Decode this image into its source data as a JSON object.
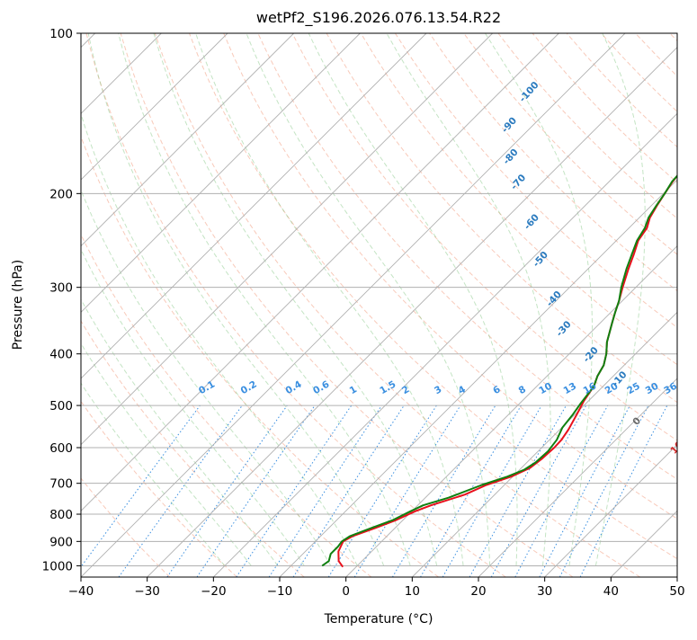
{
  "chart_data": {
    "type": "line",
    "title": "wetPf2_S196.2026.076.13.54.R22",
    "xlabel": "Temperature (°C)",
    "ylabel": "Pressure (hPa)",
    "xlim": [
      -40,
      50
    ],
    "ylim": [
      1050,
      100
    ],
    "x_ticks": [
      -40,
      -30,
      -20,
      -10,
      0,
      10,
      20,
      30,
      40,
      50
    ],
    "x_tick_labels": [
      "−40",
      "−30",
      "−20",
      "−10",
      "0",
      "10",
      "20",
      "30",
      "40",
      "50"
    ],
    "y_ticks": [
      1000,
      900,
      800,
      700,
      600,
      500,
      400,
      300,
      200,
      100
    ],
    "y_tick_labels": [
      "1000",
      "900",
      "800",
      "700",
      "600",
      "500",
      "400",
      "300",
      "200",
      "100"
    ],
    "y_scale": "log",
    "grid": true,
    "series": [
      {
        "name": "temperature",
        "color": "#e8101c",
        "points": [
          [
            -2,
            1005
          ],
          [
            -3.5,
            980
          ],
          [
            -5,
            940
          ],
          [
            -5.8,
            900
          ],
          [
            -5.2,
            880
          ],
          [
            -3,
            850
          ],
          [
            -1,
            820
          ],
          [
            0.5,
            790
          ],
          [
            2,
            770
          ],
          [
            5.5,
            735
          ],
          [
            7.3,
            705
          ],
          [
            9.8,
            680
          ],
          [
            11.3,
            655
          ],
          [
            11.7,
            630
          ],
          [
            11.9,
            600
          ],
          [
            11.8,
            580
          ],
          [
            11.3,
            555
          ],
          [
            10.3,
            520
          ],
          [
            9.3,
            490
          ],
          [
            8.6,
            460
          ],
          [
            7.6,
            440
          ],
          [
            6.9,
            420
          ],
          [
            5.6,
            400
          ],
          [
            3.9,
            380
          ],
          [
            1.8,
            350
          ],
          [
            0.7,
            335
          ],
          [
            -0.5,
            318
          ],
          [
            -2,
            300
          ],
          [
            -3.9,
            277
          ],
          [
            -5.3,
            260
          ],
          [
            -6.7,
            245
          ],
          [
            -7.3,
            232
          ],
          [
            -8.4,
            222
          ],
          [
            -9.2,
            210
          ],
          [
            -9.8,
            200
          ],
          [
            -10.4,
            190
          ],
          [
            -10.6,
            185
          ],
          [
            -9.7,
            176
          ],
          [
            -8.6,
            172
          ],
          [
            -4,
            166
          ],
          [
            3,
            158
          ],
          [
            8,
            151
          ],
          [
            9.8,
            146
          ],
          [
            10.5,
            140
          ],
          [
            12,
            130
          ],
          [
            14.5,
            120
          ],
          [
            18.3,
            110
          ],
          [
            22.5,
            100
          ]
        ]
      },
      {
        "name": "dewpoint",
        "color": "#108010",
        "points": [
          [
            -5.3,
            1000
          ],
          [
            -5,
            980
          ],
          [
            -5.8,
            950
          ],
          [
            -5.8,
            920
          ],
          [
            -6,
            900
          ],
          [
            -5.6,
            880
          ],
          [
            -3.6,
            850
          ],
          [
            -1.5,
            820
          ],
          [
            -0.2,
            790
          ],
          [
            0.8,
            770
          ],
          [
            3.5,
            745
          ],
          [
            6.6,
            705
          ],
          [
            9.2,
            680
          ],
          [
            10.7,
            660
          ],
          [
            11.3,
            640
          ],
          [
            11.5,
            610
          ],
          [
            11.1,
            580
          ],
          [
            10.1,
            550
          ],
          [
            9.7,
            520
          ],
          [
            9.2,
            495
          ],
          [
            8.6,
            460
          ],
          [
            7.6,
            440
          ],
          [
            6.9,
            420
          ],
          [
            5.6,
            400
          ],
          [
            3.9,
            380
          ],
          [
            1.8,
            350
          ],
          [
            0.7,
            335
          ],
          [
            -0.5,
            318
          ],
          [
            -2.2,
            300
          ],
          [
            -4.2,
            277
          ],
          [
            -5.6,
            260
          ],
          [
            -6.9,
            245
          ],
          [
            -7.6,
            232
          ],
          [
            -8.6,
            222
          ],
          [
            -9.3,
            210
          ],
          [
            -9.8,
            200
          ],
          [
            -10.5,
            190
          ],
          [
            -10.6,
            185
          ],
          [
            -9.7,
            176
          ],
          [
            -8.4,
            172
          ],
          [
            -4.1,
            166
          ],
          [
            -4.7,
            158
          ],
          [
            -5.8,
            151
          ],
          [
            -7.1,
            145
          ],
          [
            -9.8,
            140
          ],
          [
            -10.7,
            136
          ],
          [
            -9.3,
            130
          ],
          [
            -7.1,
            124
          ],
          [
            -3.2,
            116
          ],
          [
            0.1,
            108
          ],
          [
            3.5,
            100
          ]
        ]
      }
    ],
    "dry_adiabat_labels": [
      "-100",
      "-90",
      "-80",
      "-70",
      "-60",
      "-50",
      "-40",
      "-30",
      "-20",
      "-10",
      "0",
      "10",
      "20",
      "30",
      "40"
    ],
    "mixing_ratio_labels": [
      "0.1",
      "0.2",
      "0.4",
      "0.6",
      "1",
      "1.5",
      "2",
      "3",
      "4",
      "6",
      "8",
      "10",
      "13",
      "16",
      "20",
      "25",
      "30",
      "36"
    ]
  }
}
